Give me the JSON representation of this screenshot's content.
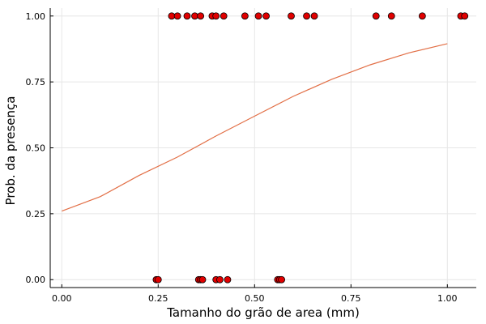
{
  "chart_data": {
    "type": "scatter",
    "xlabel": "Tamanho do grão de area (mm)",
    "ylabel": "Prob. da presença",
    "xlim": [
      -0.03,
      1.075
    ],
    "ylim": [
      -0.03,
      1.03
    ],
    "x_ticks": [
      0.0,
      0.25,
      0.5,
      0.75,
      1.0
    ],
    "x_tick_labels": [
      "0.00",
      "0.25",
      "0.50",
      "0.75",
      "1.00"
    ],
    "y_ticks": [
      0.0,
      0.25,
      0.5,
      0.75,
      1.0
    ],
    "y_tick_labels": [
      "0.00",
      "0.25",
      "0.50",
      "0.75",
      "1.00"
    ],
    "grid": true,
    "legend": "none",
    "colors": {
      "points": "#e00000",
      "point_edge": "#000000",
      "curve": "#e26f46",
      "grid": "#e6e6e6"
    },
    "series": [
      {
        "type": "scatter",
        "points": [
          {
            "x": 0.245,
            "y": 0
          },
          {
            "x": 0.25,
            "y": 0
          },
          {
            "x": 0.355,
            "y": 0
          },
          {
            "x": 0.36,
            "y": 0
          },
          {
            "x": 0.365,
            "y": 0
          },
          {
            "x": 0.4,
            "y": 0
          },
          {
            "x": 0.41,
            "y": 0
          },
          {
            "x": 0.43,
            "y": 0
          },
          {
            "x": 0.56,
            "y": 0
          },
          {
            "x": 0.565,
            "y": 0
          },
          {
            "x": 0.57,
            "y": 0
          },
          {
            "x": 0.285,
            "y": 1
          },
          {
            "x": 0.3,
            "y": 1
          },
          {
            "x": 0.325,
            "y": 1
          },
          {
            "x": 0.345,
            "y": 1
          },
          {
            "x": 0.36,
            "y": 1
          },
          {
            "x": 0.39,
            "y": 1
          },
          {
            "x": 0.4,
            "y": 1
          },
          {
            "x": 0.42,
            "y": 1
          },
          {
            "x": 0.475,
            "y": 1
          },
          {
            "x": 0.51,
            "y": 1
          },
          {
            "x": 0.53,
            "y": 1
          },
          {
            "x": 0.595,
            "y": 1
          },
          {
            "x": 0.635,
            "y": 1
          },
          {
            "x": 0.655,
            "y": 1
          },
          {
            "x": 0.815,
            "y": 1
          },
          {
            "x": 0.855,
            "y": 1
          },
          {
            "x": 0.935,
            "y": 1
          },
          {
            "x": 1.035,
            "y": 1
          },
          {
            "x": 1.045,
            "y": 1
          }
        ]
      },
      {
        "type": "line",
        "points": [
          {
            "x": 0.0,
            "y": 0.26
          },
          {
            "x": 0.1,
            "y": 0.315
          },
          {
            "x": 0.2,
            "y": 0.395
          },
          {
            "x": 0.3,
            "y": 0.465
          },
          {
            "x": 0.4,
            "y": 0.545
          },
          {
            "x": 0.5,
            "y": 0.62
          },
          {
            "x": 0.6,
            "y": 0.695
          },
          {
            "x": 0.7,
            "y": 0.76
          },
          {
            "x": 0.8,
            "y": 0.815
          },
          {
            "x": 0.9,
            "y": 0.86
          },
          {
            "x": 1.0,
            "y": 0.895
          }
        ]
      }
    ]
  }
}
